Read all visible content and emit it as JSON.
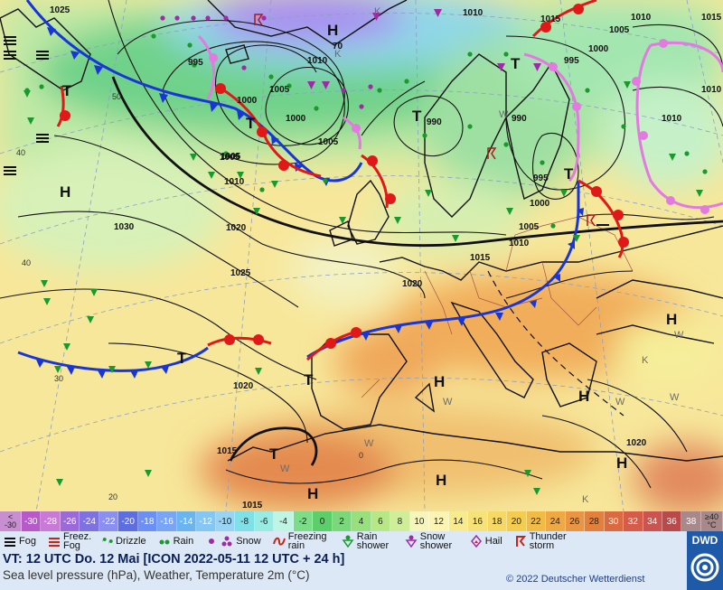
{
  "map": {
    "pressure_labels": [
      "1025",
      "1010",
      "1015",
      "1010",
      "1005",
      "1015",
      "995",
      "1000",
      "1005",
      "70",
      "1010",
      "1000",
      "1005",
      "1000",
      "995",
      "990",
      "1005",
      "1010",
      "1015",
      "1020",
      "1030",
      "1025",
      "1020",
      "1020",
      "1015",
      "1020",
      "1015",
      "1005",
      "995",
      "1000",
      "1005",
      "1010",
      "1010",
      "990",
      "1010",
      "1000"
    ],
    "lat_labels": [
      "50",
      "40",
      "40",
      "30",
      "20",
      "0"
    ],
    "centers": {
      "high": "H",
      "low": "T",
      "warm": "W",
      "cold": "K"
    }
  },
  "scale": {
    "unit_top": "<",
    "unit_val": "-30",
    "end_top": "≥40",
    "end_unit": "°C",
    "values": [
      "-30",
      "-28",
      "-26",
      "-24",
      "-22",
      "-20",
      "-18",
      "-16",
      "-14",
      "-12",
      "-10",
      "-8",
      "-6",
      "-4",
      "-2",
      "0",
      "2",
      "4",
      "6",
      "8",
      "10",
      "12",
      "14",
      "16",
      "18",
      "20",
      "22",
      "24",
      "26",
      "28",
      "30",
      "32",
      "34",
      "36",
      "38"
    ],
    "colors": [
      "#b55ac8",
      "#c97ad8",
      "#9b6ad8",
      "#7d72e0",
      "#8a8ff0",
      "#5c6ee0",
      "#6c8ff4",
      "#7aa4f4",
      "#6ab4f0",
      "#84c6f4",
      "#9ad4f4",
      "#80e0e8",
      "#98ece4",
      "#bff5e4",
      "#7ddc88",
      "#5ccf6a",
      "#7ad87a",
      "#98e07e",
      "#b6e888",
      "#d0ee9a",
      "#f6f6bc",
      "#fbf4b2",
      "#f8eb8e",
      "#f6e276",
      "#f6d864",
      "#f4cc50",
      "#f2bb46",
      "#eea844",
      "#ea9544",
      "#e2803e",
      "#da6b40",
      "#d45c48",
      "#c95450",
      "#b84a4a",
      "#a7898b"
    ]
  },
  "legend": {
    "items": [
      {
        "icon": "fog-icon",
        "label": "Fog"
      },
      {
        "icon": "freezing-fog-icon",
        "label": "Freez. Fog"
      },
      {
        "icon": "drizzle-icon",
        "label": "Drizzle"
      },
      {
        "icon": "rain-icon",
        "label": "Rain"
      },
      {
        "icon": "snow-icon",
        "label": "Snow"
      },
      {
        "icon": "freezing-rain-icon",
        "label": "Freezing rain"
      },
      {
        "icon": "rain-shower-icon",
        "label": "Rain shower"
      },
      {
        "icon": "snow-shower-icon",
        "label": "Snow shower"
      },
      {
        "icon": "hail-icon",
        "label": "Hail"
      },
      {
        "icon": "thunderstorm-icon",
        "label": "Thunder storm"
      }
    ]
  },
  "info": {
    "valid_time": "VT: 12 UTC Do.   12 Mai [ICON 2022-05-11   12 UTC + 24 h]",
    "description": "Sea level pressure (hPa), Weather, Temperature 2m (°C)",
    "copyright": "© 2022 Deutscher Wetterdienst",
    "logo": "DWD"
  }
}
